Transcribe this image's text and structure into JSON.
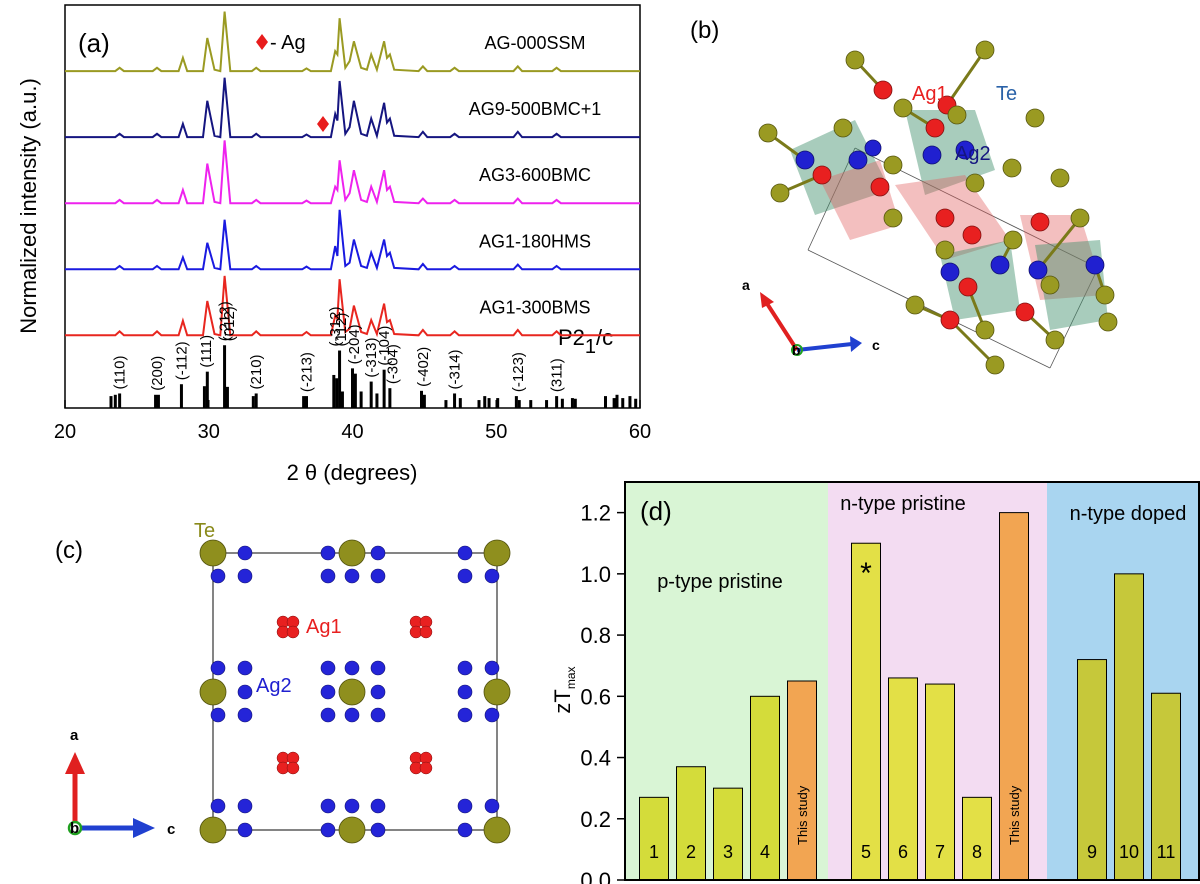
{
  "chart_data": [
    {
      "type": "line",
      "title": "(a)",
      "xlabel": "2 θ (degrees)",
      "ylabel": "Normalized intensity (a.u.)",
      "xlim": [
        20,
        60
      ],
      "xticks": [
        20,
        30,
        40,
        50,
        60
      ],
      "ylim": [
        0,
        6.1
      ],
      "annotation": "- Ag",
      "space_group": [
        "P2",
        "1",
        "/c"
      ],
      "x": [
        20,
        23.5,
        23.8,
        24.1,
        26.1,
        26.4,
        26.7,
        27.9,
        28.2,
        28.5,
        29.6,
        29.9,
        30.4,
        30.8,
        31.1,
        31.5,
        33,
        33.3,
        33.6,
        36.5,
        36.8,
        37.1,
        38.5,
        38.8,
        38.95,
        39.1,
        39.5,
        39.8,
        40.1,
        40.6,
        41.0,
        41.3,
        41.7,
        42.2,
        42.4,
        42.6,
        42.9,
        44.6,
        44.9,
        45.2,
        46.8,
        47.1,
        47.4,
        51.2,
        51.5,
        51.8,
        53.9,
        54.2,
        54.5,
        60
      ],
      "series": [
        {
          "name": "AG1-300BMS",
          "color": "#e8261f",
          "values": [
            1.1,
            1.1,
            1.16,
            1.1,
            1.1,
            1.16,
            1.1,
            1.1,
            1.32,
            1.1,
            1.1,
            1.62,
            1.12,
            1.1,
            2.0,
            1.1,
            1.1,
            1.16,
            1.1,
            1.1,
            1.15,
            1.1,
            1.1,
            1.4,
            1.35,
            1.95,
            1.15,
            1.2,
            1.55,
            1.15,
            1.12,
            1.33,
            1.12,
            1.58,
            1.3,
            1.33,
            1.12,
            1.1,
            1.18,
            1.1,
            1.1,
            1.16,
            1.1,
            1.1,
            1.18,
            1.1,
            1.1,
            1.16,
            1.1,
            1.1
          ]
        },
        {
          "name": "AG1-180HMS",
          "color": "#1a1ae0",
          "values": [
            2.1,
            2.1,
            2.15,
            2.1,
            2.1,
            2.15,
            2.1,
            2.1,
            2.28,
            2.1,
            2.1,
            2.5,
            2.12,
            2.1,
            2.85,
            2.1,
            2.1,
            2.15,
            2.1,
            2.1,
            2.14,
            2.1,
            2.1,
            2.45,
            2.3,
            3.0,
            2.15,
            2.2,
            2.55,
            2.15,
            2.12,
            2.35,
            2.12,
            2.55,
            2.3,
            2.35,
            2.12,
            2.1,
            2.18,
            2.1,
            2.1,
            2.15,
            2.1,
            2.1,
            2.17,
            2.1,
            2.1,
            2.15,
            2.1,
            2.1
          ]
        },
        {
          "name": "AG3-600BMC",
          "color": "#ee22ee",
          "values": [
            3.1,
            3.1,
            3.15,
            3.1,
            3.1,
            3.15,
            3.1,
            3.1,
            3.3,
            3.1,
            3.1,
            3.7,
            3.12,
            3.1,
            4.05,
            3.1,
            3.1,
            3.15,
            3.1,
            3.1,
            3.14,
            3.1,
            3.1,
            3.35,
            3.3,
            3.75,
            3.15,
            3.25,
            3.6,
            3.15,
            3.12,
            3.35,
            3.12,
            3.6,
            3.3,
            3.35,
            3.12,
            3.1,
            3.17,
            3.1,
            3.1,
            3.15,
            3.1,
            3.1,
            3.17,
            3.1,
            3.1,
            3.15,
            3.1,
            3.1
          ]
        },
        {
          "name": "AG9-500BMC+1",
          "color": "#151580",
          "values": [
            4.1,
            4.1,
            4.15,
            4.1,
            4.1,
            4.15,
            4.1,
            4.1,
            4.3,
            4.1,
            4.1,
            4.65,
            4.12,
            4.1,
            5.0,
            4.1,
            4.1,
            4.15,
            4.1,
            4.1,
            4.14,
            4.1,
            4.1,
            4.45,
            4.35,
            4.95,
            4.15,
            4.25,
            4.65,
            4.15,
            4.12,
            4.38,
            4.12,
            4.62,
            4.32,
            4.38,
            4.12,
            4.1,
            4.18,
            4.1,
            4.1,
            4.15,
            4.1,
            4.1,
            4.18,
            4.1,
            4.1,
            4.15,
            4.1,
            4.1
          ]
        },
        {
          "name": "AG-000SSM",
          "color": "#9a9a22",
          "values": [
            5.1,
            5.1,
            5.15,
            5.1,
            5.1,
            5.15,
            5.1,
            5.1,
            5.3,
            5.1,
            5.1,
            5.6,
            5.12,
            5.1,
            6.0,
            5.1,
            5.1,
            5.15,
            5.1,
            5.1,
            5.14,
            5.1,
            5.1,
            5.4,
            5.35,
            5.9,
            5.15,
            5.25,
            5.55,
            5.15,
            5.12,
            5.35,
            5.12,
            5.55,
            5.3,
            5.35,
            5.12,
            5.1,
            5.17,
            5.1,
            5.1,
            5.15,
            5.1,
            5.1,
            5.17,
            5.1,
            5.1,
            5.15,
            5.1,
            5.1
          ]
        }
      ],
      "reference": {
        "color": "#000000",
        "x": [
          23.2,
          23.5,
          23.8,
          26.3,
          26.5,
          28.1,
          29.7,
          29.9,
          31.1,
          31.3,
          33.1,
          33.3,
          36.6,
          36.8,
          38.7,
          38.9,
          39.1,
          39.3,
          40.0,
          40.2,
          40.6,
          41.3,
          41.7,
          42.2,
          42.6,
          44.8,
          45.0,
          46.5,
          47.1,
          47.5,
          48.8,
          49.2,
          49.5,
          50.1,
          51.4,
          51.6,
          52.4,
          53.5,
          54.2,
          54.6,
          55.3,
          55.5,
          57.6,
          58.2,
          58.4,
          58.8,
          59.3,
          59.7
        ],
        "values": [
          0.18,
          0.2,
          0.22,
          0.2,
          0.2,
          0.36,
          0.33,
          0.55,
          0.95,
          0.32,
          0.18,
          0.22,
          0.18,
          0.18,
          0.5,
          0.45,
          0.87,
          0.25,
          0.6,
          0.52,
          0.25,
          0.4,
          0.22,
          0.58,
          0.3,
          0.26,
          0.2,
          0.12,
          0.22,
          0.15,
          0.12,
          0.18,
          0.15,
          0.15,
          0.18,
          0.12,
          0.12,
          0.12,
          0.18,
          0.14,
          0.15,
          0.14,
          0.18,
          0.15,
          0.2,
          0.15,
          0.18,
          0.14
        ]
      },
      "reference_labels": {
        "x": [
          23.8,
          26.4,
          28.1,
          29.8,
          31.1,
          31.4,
          33.3,
          36.8,
          38.8,
          39.2,
          40.1,
          41.3,
          42.2,
          42.8,
          44.9,
          47.1,
          51.5,
          54.2
        ],
        "labels": [
          "(110)",
          "(200)",
          "(-112)",
          "(111)",
          "(-212)",
          "(012)",
          "(210)",
          "(-213)",
          "(-312)",
          "(112)",
          "(-204)",
          "(-313)",
          "(-104)",
          "(-304)",
          "(-402)",
          "(-314)",
          "(-123)",
          "(311)"
        ]
      }
    },
    {
      "type": "bar",
      "title": "(d)",
      "ylabel": "zT",
      "ylabel_sub": "max",
      "annotation": "*",
      "ylim": [
        0,
        1.3
      ],
      "yticks": [
        {
          "value": 0,
          "label": "0.0"
        },
        0.2,
        0.4,
        0.6,
        0.8,
        {
          "value": 1,
          "label": "1.0"
        },
        1.2
      ],
      "series": [
        {
          "name": "p-type pristine",
          "color": "#d9f5d5",
          "categories": [
            "1",
            "2",
            "3",
            "4",
            "This study"
          ],
          "values": [
            0.27,
            0.37,
            0.3,
            0.6,
            0.65
          ],
          "colors": [
            "#d4dc3a",
            "#d4dc3a",
            "#d4dc3a",
            "#d4dc3a",
            "#f2a552"
          ]
        },
        {
          "name": "n-type pristine",
          "color": "#f3dcf2",
          "categories": [
            "5",
            "6",
            "7",
            "8",
            "This study"
          ],
          "values": [
            1.1,
            0.66,
            0.64,
            0.27,
            1.2
          ],
          "colors": [
            "#e3e046",
            "#e3e046",
            "#e3e046",
            "#e3e046",
            "#f2a552"
          ]
        },
        {
          "name": "n-type doped",
          "color": "#a9d5f0",
          "categories": [
            "9",
            "10",
            "11"
          ],
          "values": [
            0.72,
            1.0,
            0.61
          ],
          "colors": [
            "#c6c83a",
            "#c6c83a",
            "#c6c83a"
          ]
        }
      ]
    }
  ],
  "structure_b": {
    "label": "(b)",
    "atoms": [
      "Ag1",
      "Te",
      "Ag2"
    ],
    "axes": [
      "a",
      "b",
      "c"
    ]
  },
  "structure_c": {
    "label": "(c)",
    "atoms": [
      "Te",
      "Ag1",
      "Ag2"
    ],
    "axes": [
      "a",
      "b",
      "c"
    ]
  }
}
